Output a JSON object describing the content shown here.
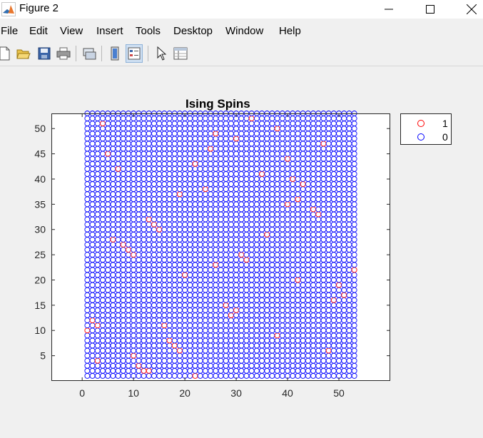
{
  "window": {
    "title": "Figure 2",
    "minimize_icon": "minimize-icon",
    "maximize_icon": "maximize-icon",
    "close_icon": "close-icon"
  },
  "menu": [
    "File",
    "Edit",
    "View",
    "Insert",
    "Tools",
    "Desktop",
    "Window",
    "Help"
  ],
  "toolbar": {
    "buttons": [
      "new-figure-icon",
      "open-file-icon",
      "save-icon",
      "print-icon",
      "link-plot-icon",
      "colorbar-icon",
      "legend-icon",
      "edit-plot-arrow-icon",
      "property-inspector-icon"
    ],
    "pressed": "legend-icon"
  },
  "chart_data": {
    "type": "scatter",
    "title": "Ising Spins",
    "xlabel": "",
    "ylabel": "",
    "xlim": [
      -6,
      60
    ],
    "ylim": [
      0,
      53
    ],
    "grid_size": 53,
    "xticks": [
      "0",
      "10",
      "20",
      "30",
      "40",
      "50"
    ],
    "yticks": [
      "5",
      "10",
      "15",
      "20",
      "25",
      "30",
      "35",
      "40",
      "45",
      "50"
    ],
    "legend_position": "outside-top-right",
    "marker": "circle",
    "series": [
      {
        "name": "1",
        "color": "#ff0000",
        "points": [
          [
            4,
            51
          ],
          [
            5,
            45
          ],
          [
            7,
            42
          ],
          [
            6,
            28
          ],
          [
            8,
            27
          ],
          [
            9,
            26
          ],
          [
            10,
            25
          ],
          [
            13,
            32
          ],
          [
            14,
            31
          ],
          [
            15,
            30
          ],
          [
            20,
            21
          ],
          [
            26,
            23
          ],
          [
            31,
            25
          ],
          [
            32,
            24
          ],
          [
            36,
            29
          ],
          [
            35,
            41
          ],
          [
            33,
            52
          ],
          [
            38,
            50
          ],
          [
            40,
            44
          ],
          [
            41,
            40
          ],
          [
            43,
            39
          ],
          [
            45,
            34
          ],
          [
            46,
            33
          ],
          [
            40,
            35
          ],
          [
            42,
            36
          ],
          [
            47,
            47
          ],
          [
            26,
            49
          ],
          [
            30,
            48
          ],
          [
            24,
            38
          ],
          [
            19,
            37
          ],
          [
            22,
            43
          ],
          [
            25,
            46
          ],
          [
            42,
            20
          ],
          [
            49,
            16
          ],
          [
            50,
            19
          ],
          [
            51,
            17
          ],
          [
            53,
            22
          ],
          [
            28,
            15
          ],
          [
            29,
            13
          ],
          [
            30,
            14
          ],
          [
            16,
            11
          ],
          [
            17,
            8
          ],
          [
            18,
            7
          ],
          [
            19,
            6
          ],
          [
            38,
            9
          ],
          [
            48,
            6
          ],
          [
            10,
            5
          ],
          [
            11,
            3
          ],
          [
            12,
            2
          ],
          [
            13,
            2
          ],
          [
            3,
            4
          ],
          [
            1,
            10
          ],
          [
            2,
            12
          ],
          [
            3,
            11
          ],
          [
            22,
            1
          ]
        ]
      },
      {
        "name": "0",
        "color": "#0000ff",
        "points": "all remaining lattice sites 1-53 x 1-53"
      }
    ]
  }
}
